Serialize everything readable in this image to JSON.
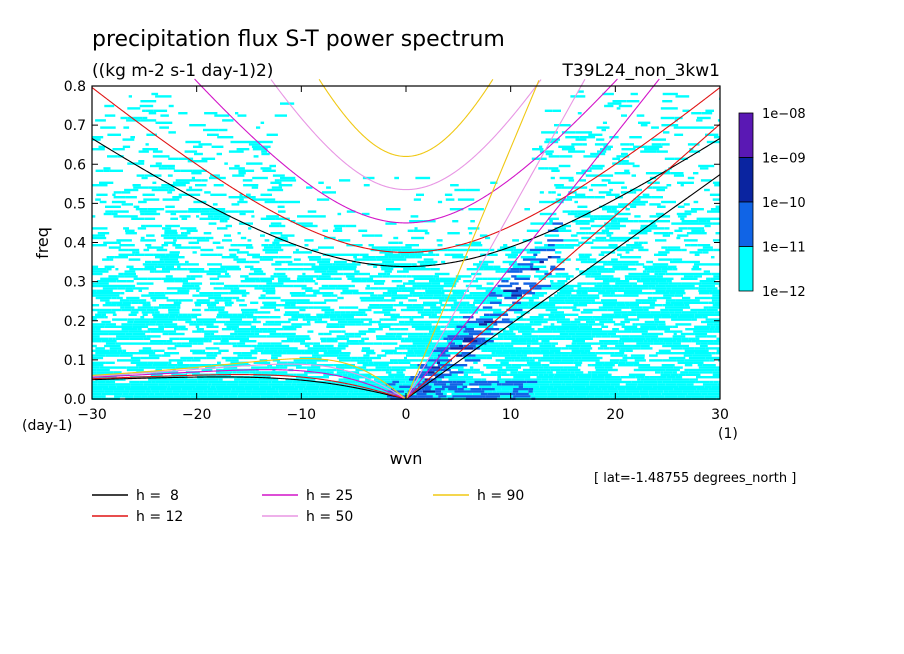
{
  "chart_data": {
    "type": "heatmap",
    "title": "precipitation flux S-T power spectrum",
    "units": "((kg m-2 s-1 day-1)2)",
    "run_label": "T39L24_non_3kw1",
    "xlabel": "wvn",
    "ylabel": "freq",
    "x_unit": "(1)",
    "y_unit": "(day-1)",
    "xlim": [
      -30,
      30
    ],
    "ylim": [
      0,
      0.8
    ],
    "x_ticks": [
      "-30",
      "-20",
      "-10",
      "0",
      "10",
      "20",
      "30"
    ],
    "y_ticks": [
      "0.0",
      "0.1",
      "0.2",
      "0.3",
      "0.4",
      "0.5",
      "0.6",
      "0.7",
      "0.8"
    ],
    "footnote": "[ lat=-1.48755 degrees_north ]",
    "colorbar": {
      "labels": [
        "1e-08",
        "1e-09",
        "1e-10",
        "1e-11",
        "1e-12"
      ],
      "colors": [
        "#5a18b4",
        "#0a24a0",
        "#1064e6",
        "#00ffff"
      ]
    },
    "dispersion_curves": [
      {
        "label": "h =  8",
        "h": 8,
        "color": "#000000"
      },
      {
        "label": "h = 12",
        "h": 12,
        "color": "#e01414"
      },
      {
        "label": "h = 25",
        "h": 25,
        "color": "#d214c8"
      },
      {
        "label": "h = 50",
        "h": 50,
        "color": "#e896e4"
      },
      {
        "label": "h = 90",
        "h": 90,
        "color": "#f0c814"
      }
    ]
  }
}
